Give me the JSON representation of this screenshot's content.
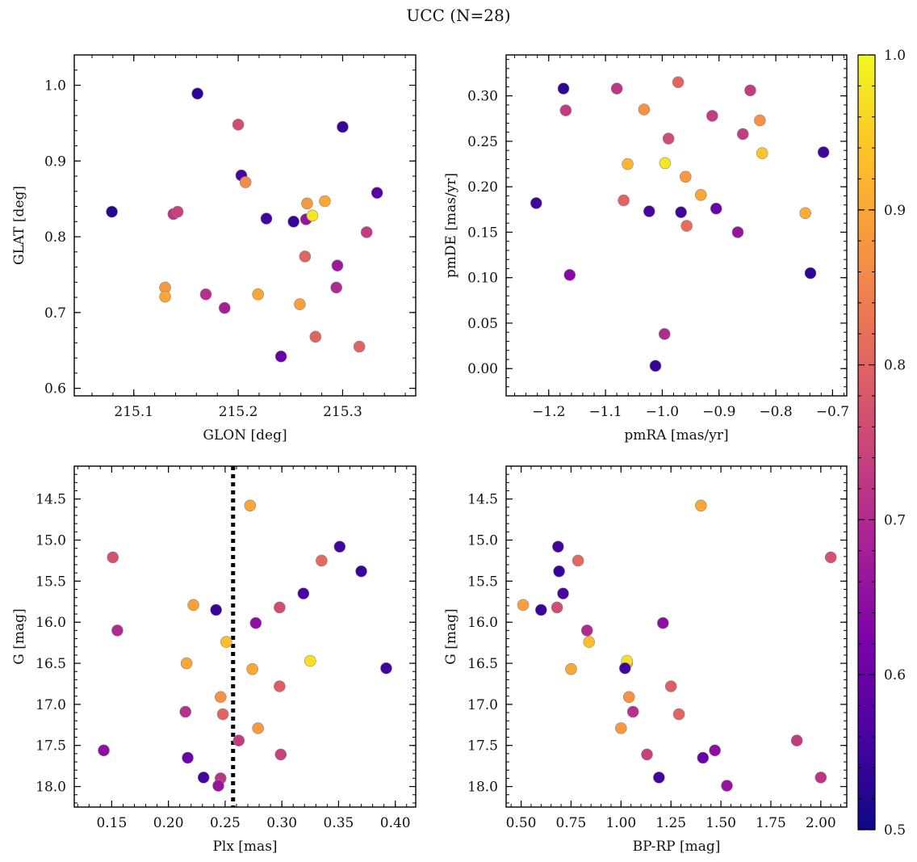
{
  "figure": {
    "title": "UCC (N=28)",
    "colorbar": {
      "colormap": "plasma",
      "range": [
        0.5,
        1.0
      ],
      "ticks": [
        0.5,
        0.6,
        0.7,
        0.8,
        0.9,
        1.0
      ],
      "tick_labels": [
        "0.5",
        "0.6",
        "0.7",
        "0.8",
        "0.9",
        "1.0"
      ]
    }
  },
  "chart_data": [
    {
      "type": "scatter",
      "panel": "top-left",
      "xlabel": "GLON [deg]",
      "ylabel": "GLAT [deg]",
      "xlim": [
        215.043,
        215.37
      ],
      "ylim": [
        0.59,
        1.04
      ],
      "xticks": [
        215.1,
        215.2,
        215.3
      ],
      "xtick_labels": [
        "215.1",
        "215.2",
        "215.3"
      ],
      "yticks": [
        0.6,
        0.7,
        0.8,
        0.9,
        1.0
      ],
      "ytick_labels": [
        "0.6",
        "0.7",
        "0.8",
        "0.9",
        "1.0"
      ],
      "points": [
        {
          "x": 215.079,
          "y": 0.833,
          "c": 0.52
        },
        {
          "x": 215.161,
          "y": 0.989,
          "c": 0.53
        },
        {
          "x": 215.3,
          "y": 0.945,
          "c": 0.54
        },
        {
          "x": 215.2,
          "y": 0.948,
          "c": 0.76
        },
        {
          "x": 215.203,
          "y": 0.881,
          "c": 0.56
        },
        {
          "x": 215.207,
          "y": 0.872,
          "c": 0.86
        },
        {
          "x": 215.227,
          "y": 0.824,
          "c": 0.55
        },
        {
          "x": 215.253,
          "y": 0.82,
          "c": 0.54
        },
        {
          "x": 215.265,
          "y": 0.823,
          "c": 0.66
        },
        {
          "x": 215.266,
          "y": 0.844,
          "c": 0.88
        },
        {
          "x": 215.271,
          "y": 0.828,
          "c": 0.98
        },
        {
          "x": 215.283,
          "y": 0.847,
          "c": 0.9
        },
        {
          "x": 215.333,
          "y": 0.858,
          "c": 0.58
        },
        {
          "x": 215.138,
          "y": 0.83,
          "c": 0.72
        },
        {
          "x": 215.142,
          "y": 0.833,
          "c": 0.74
        },
        {
          "x": 215.323,
          "y": 0.806,
          "c": 0.73
        },
        {
          "x": 215.264,
          "y": 0.774,
          "c": 0.8
        },
        {
          "x": 215.295,
          "y": 0.762,
          "c": 0.67
        },
        {
          "x": 215.13,
          "y": 0.733,
          "c": 0.88
        },
        {
          "x": 215.13,
          "y": 0.721,
          "c": 0.9
        },
        {
          "x": 215.169,
          "y": 0.724,
          "c": 0.71
        },
        {
          "x": 215.219,
          "y": 0.724,
          "c": 0.9
        },
        {
          "x": 215.294,
          "y": 0.733,
          "c": 0.7
        },
        {
          "x": 215.259,
          "y": 0.711,
          "c": 0.89
        },
        {
          "x": 215.187,
          "y": 0.706,
          "c": 0.68
        },
        {
          "x": 215.274,
          "y": 0.668,
          "c": 0.8
        },
        {
          "x": 215.316,
          "y": 0.655,
          "c": 0.8
        },
        {
          "x": 215.241,
          "y": 0.642,
          "c": 0.6
        }
      ]
    },
    {
      "type": "scatter",
      "panel": "top-right",
      "xlabel": "pmRA [mas/yr]",
      "ylabel": "pmDE [mas/yr]",
      "xlim": [
        -1.275,
        -0.675
      ],
      "ylim": [
        -0.03,
        0.345
      ],
      "xticks": [
        -1.2,
        -1.1,
        -1.0,
        -0.9,
        -0.8,
        -0.7
      ],
      "xtick_labels": [
        "−1.2",
        "−1.1",
        "−1.0",
        "−0.9",
        "−0.8",
        "−0.7"
      ],
      "yticks": [
        0.0,
        0.05,
        0.1,
        0.15,
        0.2,
        0.25,
        0.3
      ],
      "ytick_labels": [
        "0.00",
        "0.05",
        "0.10",
        "0.15",
        "0.20",
        "0.25",
        "0.30"
      ],
      "points": [
        {
          "x": -1.174,
          "y": 0.308,
          "c": 0.53
        },
        {
          "x": -1.08,
          "y": 0.308,
          "c": 0.72
        },
        {
          "x": -0.972,
          "y": 0.315,
          "c": 0.8
        },
        {
          "x": -0.845,
          "y": 0.306,
          "c": 0.73
        },
        {
          "x": -1.17,
          "y": 0.284,
          "c": 0.73
        },
        {
          "x": -1.032,
          "y": 0.285,
          "c": 0.87
        },
        {
          "x": -0.912,
          "y": 0.278,
          "c": 0.73
        },
        {
          "x": -0.828,
          "y": 0.273,
          "c": 0.87
        },
        {
          "x": -0.858,
          "y": 0.258,
          "c": 0.73
        },
        {
          "x": -0.989,
          "y": 0.253,
          "c": 0.76
        },
        {
          "x": -0.824,
          "y": 0.237,
          "c": 0.94
        },
        {
          "x": -0.716,
          "y": 0.238,
          "c": 0.55
        },
        {
          "x": -1.061,
          "y": 0.225,
          "c": 0.92
        },
        {
          "x": -0.995,
          "y": 0.226,
          "c": 0.98
        },
        {
          "x": -0.959,
          "y": 0.211,
          "c": 0.88
        },
        {
          "x": -0.932,
          "y": 0.191,
          "c": 0.9
        },
        {
          "x": -1.222,
          "y": 0.182,
          "c": 0.55
        },
        {
          "x": -1.068,
          "y": 0.185,
          "c": 0.8
        },
        {
          "x": -1.023,
          "y": 0.173,
          "c": 0.56
        },
        {
          "x": -0.967,
          "y": 0.172,
          "c": 0.55
        },
        {
          "x": -0.905,
          "y": 0.176,
          "c": 0.6
        },
        {
          "x": -0.748,
          "y": 0.171,
          "c": 0.91
        },
        {
          "x": -0.957,
          "y": 0.157,
          "c": 0.82
        },
        {
          "x": -0.867,
          "y": 0.15,
          "c": 0.66
        },
        {
          "x": -1.163,
          "y": 0.103,
          "c": 0.64
        },
        {
          "x": -0.739,
          "y": 0.105,
          "c": 0.53
        },
        {
          "x": -0.996,
          "y": 0.038,
          "c": 0.7
        },
        {
          "x": -1.012,
          "y": 0.003,
          "c": 0.54
        }
      ]
    },
    {
      "type": "scatter",
      "panel": "bottom-left",
      "xlabel": "Plx [mas]",
      "ylabel": "G [mag]",
      "xlim": [
        0.117,
        0.418
      ],
      "ylim": [
        18.25,
        14.1
      ],
      "y_inverted": true,
      "xticks": [
        0.15,
        0.2,
        0.25,
        0.3,
        0.35,
        0.4
      ],
      "xtick_labels": [
        "0.15",
        "0.20",
        "0.25",
        "0.30",
        "0.35",
        "0.40"
      ],
      "yticks": [
        14.5,
        15.0,
        15.5,
        16.0,
        16.5,
        17.0,
        17.5,
        18.0
      ],
      "ytick_labels": [
        "14.5",
        "15.0",
        "15.5",
        "16.0",
        "16.5",
        "17.0",
        "17.5",
        "18.0"
      ],
      "vline": {
        "x": 0.257,
        "style": "dotted",
        "color": "#000000"
      },
      "points": [
        {
          "x": 0.272,
          "y": 14.58,
          "c": 0.9
        },
        {
          "x": 0.351,
          "y": 15.08,
          "c": 0.55
        },
        {
          "x": 0.151,
          "y": 15.21,
          "c": 0.77
        },
        {
          "x": 0.335,
          "y": 15.25,
          "c": 0.81
        },
        {
          "x": 0.37,
          "y": 15.38,
          "c": 0.54
        },
        {
          "x": 0.319,
          "y": 15.65,
          "c": 0.56
        },
        {
          "x": 0.222,
          "y": 15.79,
          "c": 0.89
        },
        {
          "x": 0.298,
          "y": 15.82,
          "c": 0.76
        },
        {
          "x": 0.242,
          "y": 15.85,
          "c": 0.54
        },
        {
          "x": 0.155,
          "y": 16.1,
          "c": 0.7
        },
        {
          "x": 0.277,
          "y": 16.01,
          "c": 0.65
        },
        {
          "x": 0.251,
          "y": 16.24,
          "c": 0.93
        },
        {
          "x": 0.216,
          "y": 16.5,
          "c": 0.9
        },
        {
          "x": 0.325,
          "y": 16.47,
          "c": 0.97
        },
        {
          "x": 0.274,
          "y": 16.57,
          "c": 0.9
        },
        {
          "x": 0.392,
          "y": 16.56,
          "c": 0.55
        },
        {
          "x": 0.298,
          "y": 16.78,
          "c": 0.79
        },
        {
          "x": 0.246,
          "y": 16.91,
          "c": 0.87
        },
        {
          "x": 0.215,
          "y": 17.09,
          "c": 0.71
        },
        {
          "x": 0.248,
          "y": 17.12,
          "c": 0.8
        },
        {
          "x": 0.279,
          "y": 17.29,
          "c": 0.88
        },
        {
          "x": 0.262,
          "y": 17.44,
          "c": 0.73
        },
        {
          "x": 0.143,
          "y": 17.56,
          "c": 0.65
        },
        {
          "x": 0.299,
          "y": 17.61,
          "c": 0.74
        },
        {
          "x": 0.217,
          "y": 17.65,
          "c": 0.6
        },
        {
          "x": 0.231,
          "y": 17.89,
          "c": 0.55
        },
        {
          "x": 0.246,
          "y": 17.9,
          "c": 0.72
        },
        {
          "x": 0.244,
          "y": 17.99,
          "c": 0.66
        }
      ]
    },
    {
      "type": "scatter",
      "panel": "bottom-right",
      "xlabel": "BP-RP [mag]",
      "ylabel": "G [mag]",
      "xlim": [
        0.425,
        2.13
      ],
      "ylim": [
        18.25,
        14.1
      ],
      "y_inverted": true,
      "xticks": [
        0.5,
        0.75,
        1.0,
        1.25,
        1.5,
        1.75,
        2.0
      ],
      "xtick_labels": [
        "0.50",
        "0.75",
        "1.00",
        "1.25",
        "1.50",
        "1.75",
        "2.00"
      ],
      "yticks": [
        14.5,
        15.0,
        15.5,
        16.0,
        16.5,
        17.0,
        17.5,
        18.0
      ],
      "ytick_labels": [
        "14.5",
        "15.0",
        "15.5",
        "16.0",
        "16.5",
        "17.0",
        "17.5",
        "18.0"
      ],
      "points": [
        {
          "x": 1.4,
          "y": 14.58,
          "c": 0.9
        },
        {
          "x": 0.685,
          "y": 15.08,
          "c": 0.55
        },
        {
          "x": 2.05,
          "y": 15.21,
          "c": 0.77
        },
        {
          "x": 0.785,
          "y": 15.25,
          "c": 0.81
        },
        {
          "x": 0.69,
          "y": 15.38,
          "c": 0.54
        },
        {
          "x": 0.71,
          "y": 15.65,
          "c": 0.56
        },
        {
          "x": 0.51,
          "y": 15.79,
          "c": 0.89
        },
        {
          "x": 0.68,
          "y": 15.82,
          "c": 0.76
        },
        {
          "x": 0.6,
          "y": 15.85,
          "c": 0.54
        },
        {
          "x": 0.83,
          "y": 16.1,
          "c": 0.7
        },
        {
          "x": 1.21,
          "y": 16.01,
          "c": 0.65
        },
        {
          "x": 0.84,
          "y": 16.24,
          "c": 0.93
        },
        {
          "x": 1.03,
          "y": 16.5,
          "c": 0.9
        },
        {
          "x": 1.03,
          "y": 16.47,
          "c": 0.97
        },
        {
          "x": 0.75,
          "y": 16.57,
          "c": 0.9
        },
        {
          "x": 1.02,
          "y": 16.56,
          "c": 0.55
        },
        {
          "x": 1.25,
          "y": 16.78,
          "c": 0.79
        },
        {
          "x": 1.04,
          "y": 16.91,
          "c": 0.87
        },
        {
          "x": 1.06,
          "y": 17.09,
          "c": 0.71
        },
        {
          "x": 1.29,
          "y": 17.12,
          "c": 0.8
        },
        {
          "x": 1.0,
          "y": 17.29,
          "c": 0.88
        },
        {
          "x": 1.88,
          "y": 17.44,
          "c": 0.73
        },
        {
          "x": 1.47,
          "y": 17.56,
          "c": 0.65
        },
        {
          "x": 1.13,
          "y": 17.61,
          "c": 0.74
        },
        {
          "x": 1.41,
          "y": 17.65,
          "c": 0.6
        },
        {
          "x": 1.19,
          "y": 17.89,
          "c": 0.55
        },
        {
          "x": 2.0,
          "y": 17.89,
          "c": 0.72
        },
        {
          "x": 1.53,
          "y": 17.99,
          "c": 0.66
        }
      ]
    }
  ]
}
